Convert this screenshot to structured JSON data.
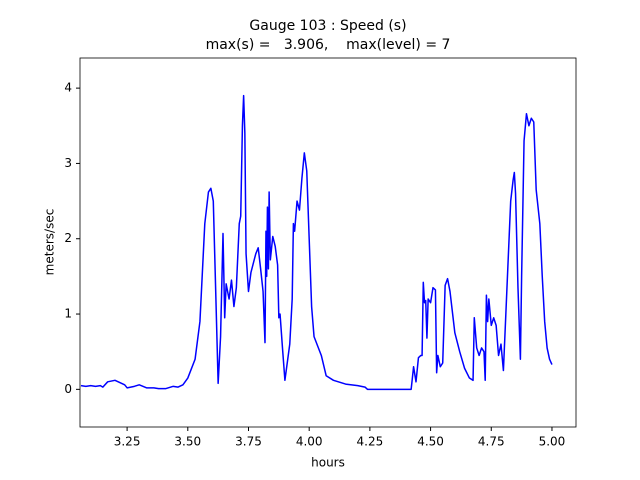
{
  "chart_data": {
    "type": "line",
    "title": "Gauge 103 : Speed (s)",
    "subtitle": "max(s) =   3.906,    max(level) = 7",
    "xlabel": "hours",
    "ylabel": "meters/sec",
    "xlim": [
      3.056,
      5.099
    ],
    "ylim": [
      -0.5,
      4.4
    ],
    "xticks": [
      {
        "value": 3.25,
        "label": "3.25"
      },
      {
        "value": 3.5,
        "label": "3.50"
      },
      {
        "value": 3.75,
        "label": "3.75"
      },
      {
        "value": 4.0,
        "label": "4.00"
      },
      {
        "value": 4.25,
        "label": "4.25"
      },
      {
        "value": 4.5,
        "label": "4.50"
      },
      {
        "value": 4.75,
        "label": "4.75"
      },
      {
        "value": 5.0,
        "label": "5.00"
      }
    ],
    "yticks": [
      0,
      1,
      2,
      3,
      4
    ],
    "series": [
      {
        "color": "#0000ff",
        "x": [
          3.06,
          3.08,
          3.1,
          3.12,
          3.14,
          3.15,
          3.17,
          3.2,
          3.22,
          3.24,
          3.25,
          3.28,
          3.3,
          3.33,
          3.36,
          3.38,
          3.41,
          3.44,
          3.46,
          3.48,
          3.5,
          3.53,
          3.55,
          3.57,
          3.585,
          3.595,
          3.605,
          3.615,
          3.625,
          3.635,
          3.645,
          3.652,
          3.658,
          3.67,
          3.68,
          3.69,
          3.7,
          3.712,
          3.718,
          3.725,
          3.73,
          3.735,
          3.74,
          3.75,
          3.76,
          3.78,
          3.79,
          3.8,
          3.81,
          3.818,
          3.822,
          3.825,
          3.828,
          3.832,
          3.835,
          3.84,
          3.85,
          3.86,
          3.87,
          3.875,
          3.88,
          3.89,
          3.9,
          3.92,
          3.93,
          3.935,
          3.94,
          3.95,
          3.96,
          3.97,
          3.98,
          3.99,
          4.0,
          4.01,
          4.02,
          4.05,
          4.07,
          4.1,
          4.15,
          4.2,
          4.23,
          4.24,
          4.3,
          4.42,
          4.43,
          4.44,
          4.45,
          4.46,
          4.465,
          4.47,
          4.475,
          4.48,
          4.485,
          4.49,
          4.5,
          4.51,
          4.52,
          4.525,
          4.53,
          4.54,
          4.55,
          4.56,
          4.57,
          4.58,
          4.6,
          4.62,
          4.64,
          4.66,
          4.675,
          4.68,
          4.69,
          4.7,
          4.71,
          4.72,
          4.725,
          4.73,
          4.735,
          4.74,
          4.75,
          4.76,
          4.77,
          4.78,
          4.79,
          4.8,
          4.81,
          4.82,
          4.83,
          4.84,
          4.845,
          4.85,
          4.86,
          4.87,
          4.875,
          4.885,
          4.895,
          4.905,
          4.915,
          4.925,
          4.935,
          4.95,
          4.96,
          4.97,
          4.98,
          4.99,
          5.0
        ],
        "values": [
          0.05,
          0.04,
          0.05,
          0.04,
          0.05,
          0.03,
          0.1,
          0.12,
          0.09,
          0.06,
          0.02,
          0.04,
          0.06,
          0.02,
          0.02,
          0.01,
          0.01,
          0.04,
          0.03,
          0.06,
          0.15,
          0.4,
          0.9,
          2.2,
          2.62,
          2.67,
          2.5,
          1.3,
          0.08,
          0.7,
          2.07,
          0.95,
          1.4,
          1.2,
          1.45,
          1.1,
          1.35,
          2.2,
          2.3,
          3.5,
          3.9,
          3.4,
          1.8,
          1.3,
          1.55,
          1.8,
          1.88,
          1.6,
          1.3,
          0.62,
          2.1,
          1.5,
          2.42,
          1.6,
          2.62,
          1.72,
          2.03,
          1.9,
          1.65,
          0.95,
          1.0,
          0.55,
          0.12,
          0.6,
          1.2,
          2.2,
          2.1,
          2.5,
          2.38,
          2.8,
          3.14,
          2.9,
          2.0,
          1.1,
          0.7,
          0.45,
          0.18,
          0.12,
          0.07,
          0.05,
          0.03,
          0.0,
          0.0,
          0.0,
          0.3,
          0.1,
          0.42,
          0.45,
          0.45,
          1.42,
          1.15,
          1.18,
          0.68,
          1.2,
          1.15,
          1.35,
          1.32,
          0.22,
          0.45,
          0.3,
          0.35,
          1.38,
          1.47,
          1.3,
          0.75,
          0.5,
          0.28,
          0.15,
          0.12,
          0.95,
          0.55,
          0.45,
          0.55,
          0.5,
          0.12,
          1.25,
          0.9,
          1.2,
          0.85,
          0.95,
          0.85,
          0.45,
          0.6,
          0.25,
          1.0,
          1.75,
          2.5,
          2.78,
          2.88,
          2.6,
          1.35,
          0.4,
          1.5,
          3.3,
          3.66,
          3.5,
          3.6,
          3.55,
          2.65,
          2.2,
          1.5,
          0.9,
          0.55,
          0.4,
          0.33
        ]
      }
    ]
  }
}
